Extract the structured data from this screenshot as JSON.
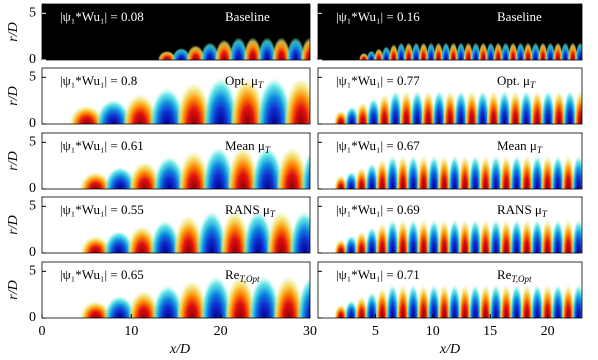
{
  "xlabel": "x/D",
  "ylabel": "r/D",
  "axes": {
    "left": {
      "xlim": [
        0,
        30
      ],
      "xticks": [
        0,
        10,
        20,
        30
      ],
      "ylim": [
        0,
        6
      ],
      "yticks": [
        0,
        5
      ]
    },
    "right": {
      "xlim": [
        0,
        23
      ],
      "xticks": [
        5,
        10,
        15,
        20
      ],
      "ylim": [
        0,
        6
      ],
      "yticks": [
        0,
        5
      ]
    }
  },
  "panels": [
    {
      "annotation": "|ψ₁*Wu₁| = 0.08",
      "case": "Baseline"
    },
    {
      "annotation": "|ψ₁*Wu₁| = 0.16",
      "case": "Baseline"
    },
    {
      "annotation": "|ψ₁*Wu₁| = 0.8",
      "case": "Opt. μ",
      "case_sub": "T"
    },
    {
      "annotation": "|ψ₁*Wu₁| = 0.77",
      "case": "Opt. μ",
      "case_sub": "T"
    },
    {
      "annotation": "|ψ₁*Wu₁| = 0.61",
      "case": "Mean μ",
      "case_sub": "T"
    },
    {
      "annotation": "|ψ₁*Wu₁| = 0.67",
      "case": "Mean μ",
      "case_sub": "T"
    },
    {
      "annotation": "|ψ₁*Wu₁| = 0.55",
      "case": "RANS μ",
      "case_sub": "T"
    },
    {
      "annotation": "|ψ₁*Wu₁| = 0.69",
      "case": "RANS μ",
      "case_sub": "T"
    },
    {
      "annotation": "|ψ₁*Wu₁| = 0.65",
      "case": "Re",
      "case_sub": "T,Opt"
    },
    {
      "annotation": "|ψ₁*Wu₁| = 0.71",
      "case": "Re",
      "case_sub": "T,Opt"
    }
  ]
}
